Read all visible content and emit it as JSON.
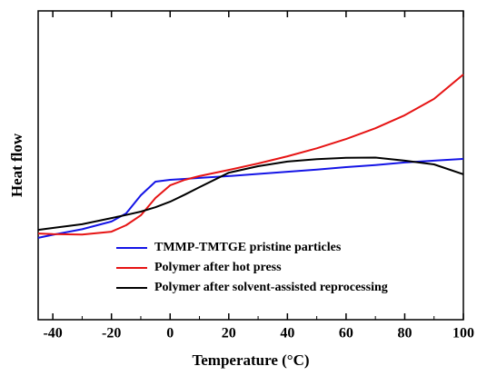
{
  "chart_data": {
    "type": "line",
    "x_label": "Temperature (°C)",
    "y_label": "Heat flow",
    "x": [
      -45,
      -40,
      -30,
      -20,
      -15,
      -10,
      -5,
      0,
      5,
      10,
      20,
      30,
      40,
      50,
      60,
      70,
      80,
      90,
      100
    ],
    "series": [
      {
        "name": "TMMP-TMTGE pristine particles",
        "color": "#1414e6",
        "values": [
          26.5,
          27.5,
          29.3,
          31.8,
          34.4,
          40.3,
          44.7,
          45.3,
          45.6,
          45.9,
          46.5,
          47.2,
          47.9,
          48.6,
          49.4,
          50.1,
          50.9,
          51.5,
          52.1
        ]
      },
      {
        "name": "Polymer after hot press",
        "color": "#e61414",
        "values": [
          27.9,
          27.7,
          27.6,
          28.5,
          30.6,
          33.8,
          39.4,
          43.5,
          45.3,
          46.5,
          48.5,
          50.6,
          52.9,
          55.5,
          58.5,
          62.0,
          66.2,
          71.5,
          79.4
        ]
      },
      {
        "name": "Polymer after solvent-assisted reprocessing",
        "color": "#000000",
        "values": [
          29.1,
          29.7,
          30.9,
          32.9,
          33.9,
          35.0,
          36.4,
          38.2,
          40.5,
          42.9,
          47.6,
          49.7,
          51.2,
          52.0,
          52.4,
          52.5,
          51.5,
          50.3,
          47.1
        ]
      }
    ],
    "xlim": [
      -45,
      100
    ],
    "xticks": [
      -40,
      -20,
      0,
      20,
      40,
      60,
      80,
      100
    ],
    "ylim": [
      0,
      100
    ]
  }
}
